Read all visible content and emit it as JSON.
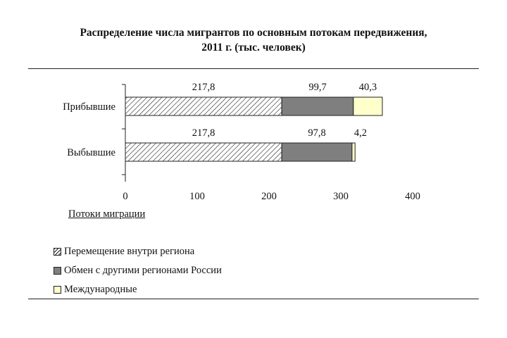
{
  "chart_data": {
    "type": "bar",
    "orientation": "horizontal",
    "stacked": true,
    "title": "Распределение числа мигрантов по основным потокам передвижения,",
    "subtitle": "2011 г. (тыс. человек)",
    "xlabel": "Потоки миграции",
    "categories": [
      "Прибывшие",
      "Выбывшие"
    ],
    "xlim": [
      0,
      400
    ],
    "xticks": [
      "0",
      "100",
      "200",
      "300",
      "400"
    ],
    "series": [
      {
        "name": "Перемещение внутри региона",
        "values": [
          217.8,
          217.8
        ],
        "labels": [
          "217,8",
          "217,8"
        ],
        "pattern": "hatch",
        "color": "#ffffff"
      },
      {
        "name": "Обмен с другими регионами России",
        "values": [
          99.7,
          97.8
        ],
        "labels": [
          "99,7",
          "97,8"
        ],
        "color": "#7f7f7f"
      },
      {
        "name": "Международные",
        "values": [
          40.3,
          4.2
        ],
        "labels": [
          "40,3",
          "4,2"
        ],
        "color": "#ffffcc"
      }
    ],
    "legend_position": "bottom-left",
    "grid": false
  }
}
